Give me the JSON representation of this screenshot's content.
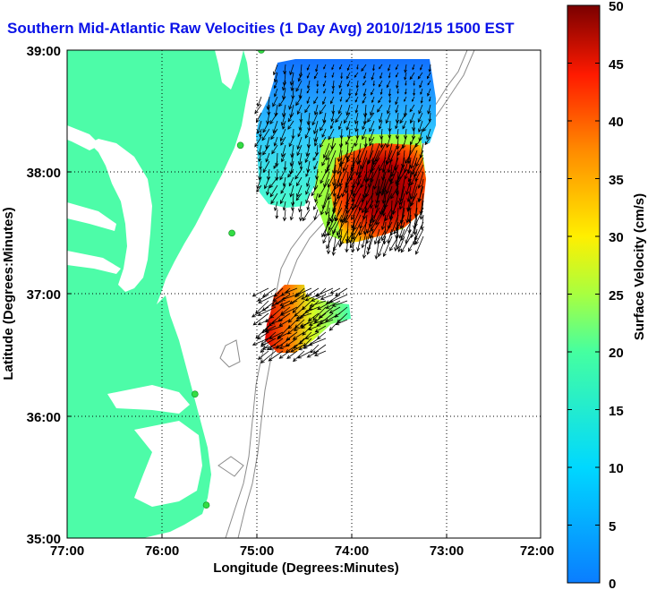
{
  "title": "Southern Mid-Atlantic Raw Velocities (1 Day Avg) 2010/12/15 1500 EST",
  "x_axis": {
    "label": "Longitude (Degrees:Minutes)",
    "ticks": [
      "77:00",
      "76:00",
      "75:00",
      "74:00",
      "73:00",
      "72:00"
    ]
  },
  "y_axis": {
    "label": "Latitude (Degrees:Minutes)",
    "ticks": [
      "39:00",
      "38:00",
      "37:00",
      "36:00",
      "35:00"
    ]
  },
  "colorbar": {
    "label": "Surface Velocity (cm/s)",
    "ticks": [
      "50",
      "45",
      "40",
      "35",
      "30",
      "25",
      "20",
      "15",
      "10",
      "5",
      "0"
    ],
    "range": [
      0,
      50
    ],
    "colormap": "jet"
  },
  "colors": {
    "land": "#4dfca8",
    "ocean": "#ffffff",
    "bathymetry": "#8c8c8c",
    "title": "#0a12e8",
    "radar_site": "#33dd44"
  },
  "map": {
    "lon_range": [
      -77,
      -72
    ],
    "lat_range": [
      35,
      39
    ],
    "grid": "dotted"
  },
  "radar_sites": [
    {
      "lon": -74.95,
      "lat": 39.0
    },
    {
      "lon": -75.17,
      "lat": 38.22
    },
    {
      "lon": -75.26,
      "lat": 37.5
    },
    {
      "lon": -75.65,
      "lat": 36.18
    },
    {
      "lon": -75.53,
      "lat": 35.27
    }
  ]
}
